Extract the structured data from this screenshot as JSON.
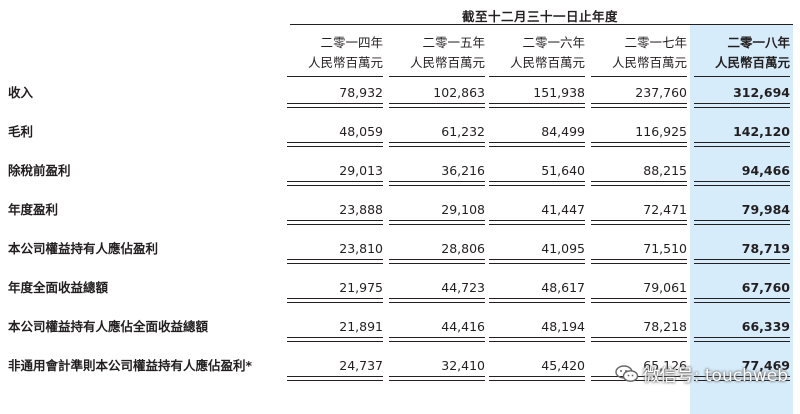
{
  "period_header": "截至十二月三十一日止年度",
  "columns": [
    {
      "year": "二零一四年",
      "unit": "人民幣百萬元",
      "highlight": false
    },
    {
      "year": "二零一五年",
      "unit": "人民幣百萬元",
      "highlight": false
    },
    {
      "year": "二零一六年",
      "unit": "人民幣百萬元",
      "highlight": false
    },
    {
      "year": "二零一七年",
      "unit": "人民幣百萬元",
      "highlight": false
    },
    {
      "year": "二零一八年",
      "unit": "人民幣百萬元",
      "highlight": true
    }
  ],
  "rows": [
    {
      "label": "收入",
      "values": [
        "78,932",
        "102,863",
        "151,938",
        "237,760",
        "312,694"
      ]
    },
    {
      "label": "毛利",
      "values": [
        "48,059",
        "61,232",
        "84,499",
        "116,925",
        "142,120"
      ]
    },
    {
      "label": "除稅前盈利",
      "values": [
        "29,013",
        "36,216",
        "51,640",
        "88,215",
        "94,466"
      ]
    },
    {
      "label": "年度盈利",
      "values": [
        "23,888",
        "29,108",
        "41,447",
        "72,471",
        "79,984"
      ]
    },
    {
      "label": "本公司權益持有人應佔盈利",
      "values": [
        "23,810",
        "28,806",
        "41,095",
        "71,510",
        "78,719"
      ]
    },
    {
      "label": "年度全面收益總額",
      "values": [
        "21,975",
        "44,723",
        "48,617",
        "79,061",
        "67,760"
      ]
    },
    {
      "label": "本公司權益持有人應佔全面收益總額",
      "values": [
        "21,891",
        "44,416",
        "48,194",
        "78,218",
        "66,339"
      ]
    },
    {
      "label": "非通用會計準則本公司權益持有人應佔盈利*",
      "values": [
        "24,737",
        "32,410",
        "45,420",
        "65,126",
        "77,469"
      ]
    }
  ],
  "watermark": {
    "text": "微信号: touchweb",
    "icon": "wechat-icon"
  }
}
